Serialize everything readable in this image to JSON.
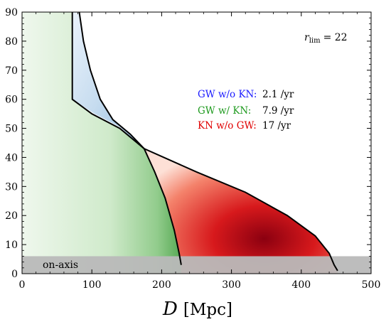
{
  "chart_data": {
    "type": "heatmap",
    "title": "",
    "xlabel": "D [Mpc]",
    "xlabel_main": "D",
    "xlabel_unit": "[Mpc]",
    "ylabel": "",
    "xlim": [
      0,
      500
    ],
    "ylim": [
      0,
      90
    ],
    "x_ticks": [
      0,
      100,
      200,
      300,
      400,
      500
    ],
    "y_ticks": [
      0,
      10,
      20,
      30,
      40,
      50,
      60,
      70,
      80,
      90
    ],
    "grid": false,
    "legend_position": "top-right",
    "annotations": {
      "rlim_symbol": "r",
      "rlim_sub": "lim",
      "rlim_value": "= 22",
      "on_axis_label": "on-axis",
      "on_axis_band": [
        0,
        6
      ]
    },
    "series": [
      {
        "name": "GW w/o KN:",
        "rate": "2.1 /yr",
        "color": "#1a1aff",
        "region": "blue",
        "boundary_left": [
          [
            72,
            90
          ],
          [
            72,
            60
          ],
          [
            104,
            55
          ],
          [
            140,
            50.5
          ],
          [
            175,
            43
          ]
        ],
        "boundary_right": [
          [
            82,
            90
          ],
          [
            88,
            80
          ],
          [
            98,
            70
          ],
          [
            112,
            60
          ],
          [
            130,
            53
          ],
          [
            155,
            48
          ],
          [
            175,
            43
          ]
        ]
      },
      {
        "name": "GW w/ KN:",
        "rate": "7.9 /yr",
        "color": "#1e9a1e",
        "region": "green",
        "boundary": [
          [
            175,
            43
          ],
          [
            190,
            35
          ],
          [
            205,
            26
          ],
          [
            218,
            15
          ],
          [
            225,
            7
          ],
          [
            228,
            3
          ]
        ]
      },
      {
        "name": "KN w/o GW:",
        "rate": "17 /yr",
        "color": "#e00000",
        "region": "red",
        "boundary": [
          [
            175,
            43
          ],
          [
            250,
            35
          ],
          [
            320,
            28
          ],
          [
            380,
            20
          ],
          [
            420,
            13
          ],
          [
            440,
            7
          ],
          [
            447,
            3
          ],
          [
            452,
            1
          ]
        ]
      }
    ],
    "detection_curve": [
      [
        72,
        90
      ],
      [
        72,
        60
      ],
      [
        100,
        55
      ],
      [
        140,
        50
      ],
      [
        175,
        43
      ],
      [
        250,
        35
      ],
      [
        320,
        28
      ],
      [
        380,
        20
      ],
      [
        420,
        13
      ],
      [
        440,
        7
      ],
      [
        447,
        3
      ],
      [
        452,
        1
      ]
    ],
    "gw_curve": [
      [
        82,
        90
      ],
      [
        88,
        80
      ],
      [
        98,
        70
      ],
      [
        112,
        60
      ],
      [
        130,
        53
      ],
      [
        155,
        48
      ],
      [
        175,
        43
      ],
      [
        190,
        35
      ],
      [
        205,
        26
      ],
      [
        218,
        15
      ],
      [
        225,
        7
      ],
      [
        228,
        3
      ]
    ]
  }
}
